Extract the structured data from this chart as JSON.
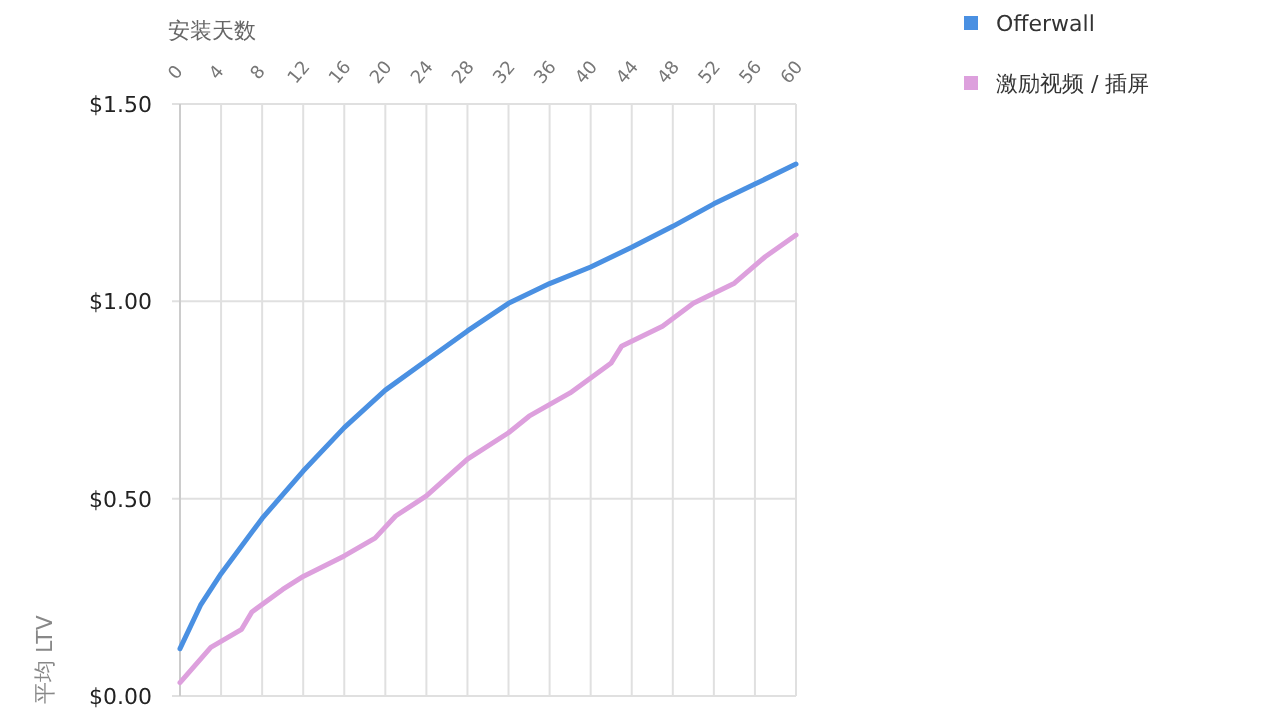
{
  "chart_data": {
    "type": "line",
    "xlabel": "安装天数",
    "ylabel": "平均 LTV",
    "xlim": [
      0,
      60
    ],
    "xticks": [
      0,
      4,
      8,
      12,
      16,
      20,
      24,
      28,
      32,
      36,
      40,
      44,
      48,
      52,
      56,
      60
    ],
    "ylim": [
      0,
      1.5
    ],
    "yticks": [
      {
        "value": 0,
        "label": "$0.00"
      },
      {
        "value": 0.5,
        "label": "$0.50"
      },
      {
        "value": 1,
        "label": "$1.00"
      },
      {
        "value": 1.5,
        "label": "$1.50"
      }
    ],
    "grid": true,
    "legend": "top right",
    "marker": "none",
    "line_style": "solid",
    "series": [
      {
        "name": "Offerwall",
        "color": "#4a90e2",
        "x": [
          0,
          2,
          4,
          8,
          12,
          16,
          20,
          24,
          28,
          32,
          36,
          40,
          44,
          48,
          52,
          56,
          60
        ],
        "values": [
          0.12,
          0.23,
          0.31,
          0.45,
          0.57,
          0.68,
          0.775,
          0.85,
          0.925,
          0.995,
          1.045,
          1.087,
          1.137,
          1.19,
          1.247,
          1.297,
          1.348
        ]
      },
      {
        "name": "激励视频 / 插屏",
        "color": "#dda0dd",
        "x": [
          0,
          3,
          6,
          7,
          10,
          12,
          16,
          19,
          21,
          24,
          28,
          32,
          34,
          38,
          42,
          43,
          47,
          50,
          54,
          57,
          60
        ],
        "values": [
          0.034,
          0.123,
          0.169,
          0.213,
          0.27,
          0.303,
          0.355,
          0.4,
          0.456,
          0.507,
          0.6,
          0.667,
          0.709,
          0.768,
          0.844,
          0.886,
          0.937,
          0.995,
          1.046,
          1.113,
          1.168
        ]
      }
    ]
  }
}
